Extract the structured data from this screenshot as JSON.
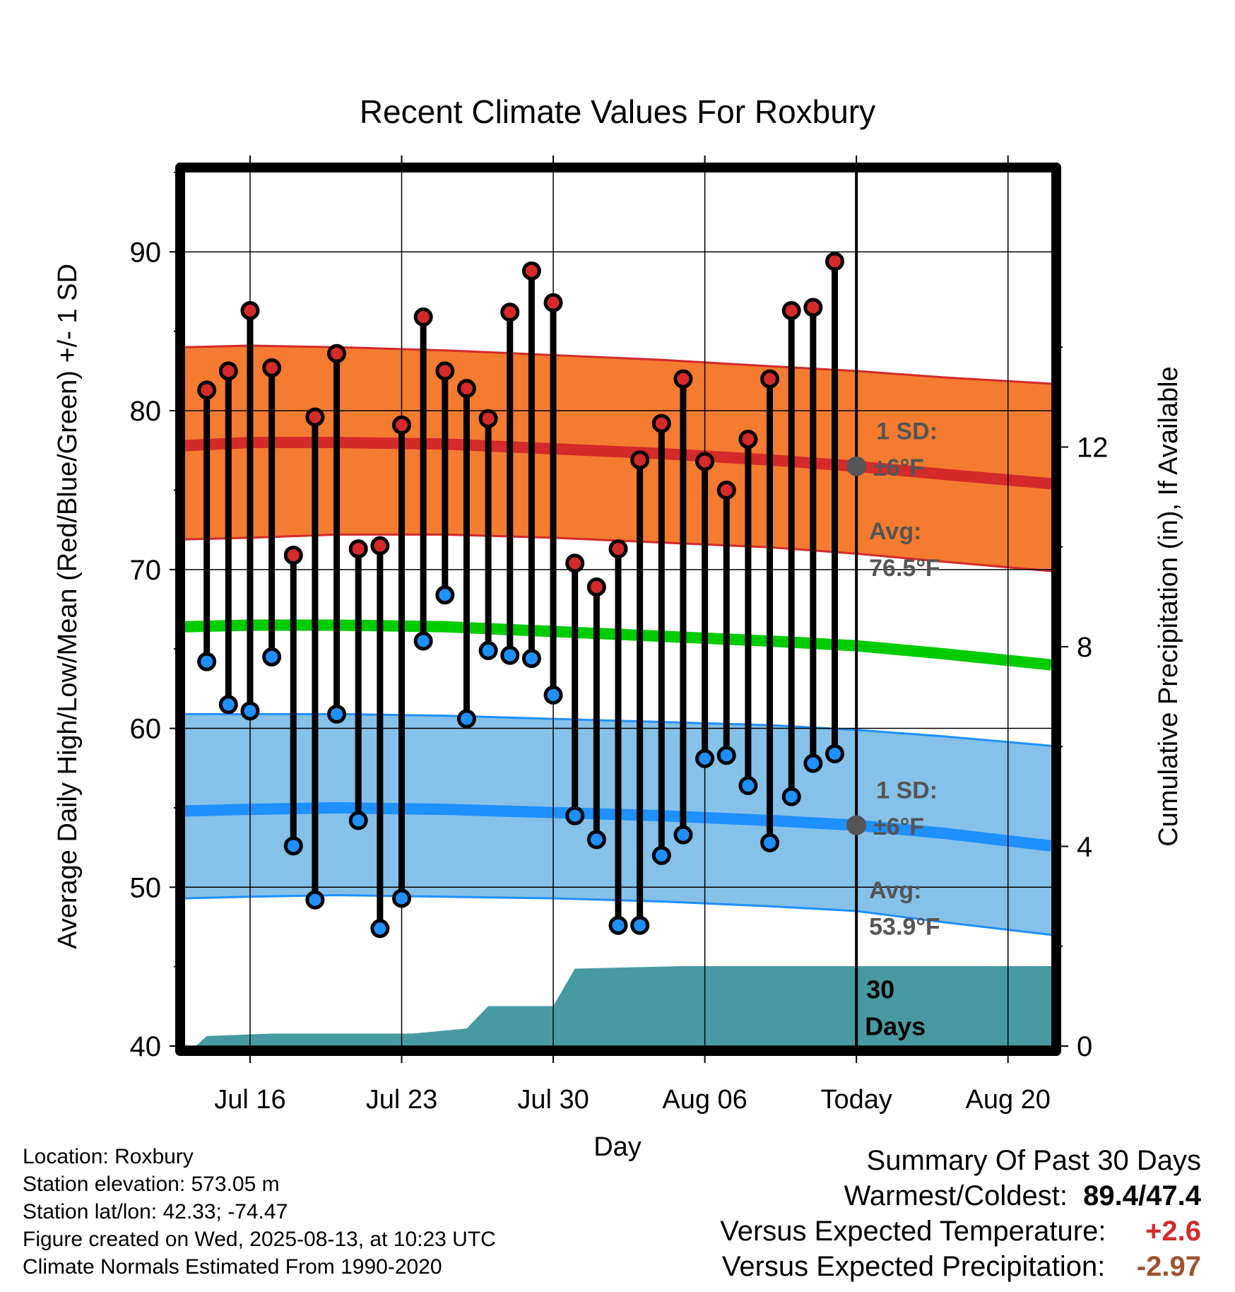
{
  "chart_data": {
    "type": "line",
    "title": "Recent Climate Values For Roxbury",
    "xlabel": "Day",
    "ylabel": "Average Daily High/Low/Mean (Red/Blue/Green) +/- 1 SD",
    "y2label": "Cumulative Precipitation (in), If Available",
    "ylim": [
      40,
      95
    ],
    "y2lim": [
      0,
      17.5
    ],
    "yticks": [
      40,
      50,
      60,
      70,
      80,
      90
    ],
    "y2ticks": [
      0,
      4,
      8,
      12
    ],
    "x_tick_labels": [
      "Jul 16",
      "Jul 23",
      "Jul 30",
      "Aug 06",
      "Today",
      "Aug 20"
    ],
    "x_tick_days": [
      16,
      23,
      30,
      37,
      44,
      51
    ],
    "x_range_days": [
      13,
      53
    ],
    "today_day": 44,
    "grid": true,
    "observed": {
      "days": [
        14,
        15,
        16,
        17,
        18,
        19,
        20,
        21,
        22,
        23,
        24,
        25,
        26,
        27,
        28,
        29,
        30,
        31,
        32,
        33,
        34,
        35,
        36,
        37,
        38,
        39,
        40,
        41,
        42,
        43
      ],
      "high": [
        81.3,
        82.5,
        86.3,
        82.7,
        70.9,
        79.6,
        83.6,
        71.3,
        71.5,
        79.1,
        85.9,
        82.5,
        81.4,
        79.5,
        86.2,
        88.8,
        86.8,
        70.4,
        68.9,
        71.3,
        76.9,
        79.2,
        82,
        76.8,
        75,
        78.2,
        82,
        86.3,
        86.5,
        89.4
      ],
      "low": [
        64.2,
        61.5,
        61.1,
        64.5,
        52.6,
        49.2,
        60.9,
        54.2,
        47.4,
        49.3,
        65.5,
        68.4,
        60.6,
        64.9,
        64.6,
        64.4,
        62.1,
        54.5,
        53,
        47.6,
        47.6,
        52,
        53.3,
        58.1,
        58.3,
        56.4,
        52.8,
        55.7,
        57.8,
        58.4
      ]
    },
    "normals": {
      "days": [
        13,
        16,
        20,
        25,
        30,
        35,
        40,
        44,
        48,
        53
      ],
      "high_avg": [
        77.8,
        78,
        78,
        77.9,
        77.6,
        77.3,
        76.9,
        76.5,
        76,
        75.4
      ],
      "high_upper": [
        84,
        84.1,
        84,
        83.8,
        83.5,
        83.2,
        82.8,
        82.5,
        82.1,
        81.7
      ],
      "high_lower": [
        71.9,
        72,
        72.2,
        72.2,
        72,
        71.7,
        71.4,
        71,
        70.5,
        69.9
      ],
      "mean_avg": [
        66.4,
        66.5,
        66.5,
        66.4,
        66.1,
        65.8,
        65.5,
        65.2,
        64.7,
        64
      ],
      "low_avg": [
        54.8,
        54.9,
        55,
        54.9,
        54.7,
        54.5,
        54.2,
        53.9,
        53.4,
        52.6
      ],
      "low_upper": [
        60.9,
        60.9,
        60.9,
        60.8,
        60.6,
        60.4,
        60.2,
        59.9,
        59.5,
        58.9
      ],
      "low_lower": [
        49.3,
        49.4,
        49.5,
        49.4,
        49.3,
        49.1,
        48.8,
        48.5,
        47.8,
        47
      ]
    },
    "precipitation": {
      "days": [
        13.5,
        14,
        17,
        21,
        23.5,
        26,
        27,
        30,
        31,
        36,
        53
      ],
      "cumulative": [
        0,
        0.2,
        0.25,
        0.25,
        0.25,
        0.35,
        0.8,
        0.8,
        1.55,
        1.6,
        1.6
      ]
    },
    "annotations": {
      "high_sd_label_1": "1 SD:",
      "high_sd_label_2": "±6°F",
      "high_avg_label_1": "Avg:",
      "high_avg_label_2": "76.5°F",
      "high_avg_today": 76.5,
      "low_sd_label_1": "1 SD:",
      "low_sd_label_2": "±6°F",
      "low_avg_label_1": "Avg:",
      "low_avg_label_2": "53.9°F",
      "low_avg_today": 53.9,
      "days_label_1": "30",
      "days_label_2": "Days"
    },
    "colors": {
      "high_band": "#f47b30",
      "high_line": "#d42a2a",
      "mean_line": "#00cc00",
      "low_band": "#85c1e8",
      "low_line": "#1e90ff",
      "precip": "#479aa2",
      "high_dot": "#d42a2a",
      "low_dot": "#1e90ff",
      "annot": "#555555"
    }
  },
  "info": {
    "location": "Location: Roxbury",
    "elevation": "Station elevation: 573.05 m",
    "latlon": "Station lat/lon: 42.33; -74.47",
    "created": "Figure created on Wed, 2025-08-13, at 10:23 UTC",
    "normals": "Climate Normals Estimated From 1990-2020"
  },
  "summary": {
    "heading": "Summary Of Past 30 Days",
    "warmest_label": "Warmest/Coldest:",
    "warmest_value": "89.4/47.4",
    "temp_label": "Versus Expected Temperature:",
    "temp_value": "+2.6",
    "temp_color": "#d42a2a",
    "precip_label": "Versus Expected Precipitation:",
    "precip_value": "-2.97",
    "precip_color": "#a0522d"
  }
}
